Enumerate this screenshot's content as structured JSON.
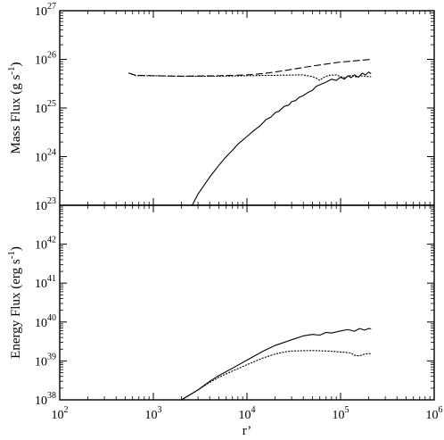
{
  "chart_data": [
    {
      "type": "line",
      "ylabel": "Mass Flux (g s",
      "ylabel_exponent": "-1",
      "ylabel_close": ")",
      "xscale": "log",
      "yscale": "log",
      "xlim": [
        100,
        1000000
      ],
      "ylim": [
        1e+23,
        1e+27
      ],
      "y_ticks": [
        {
          "base": "10",
          "exp": "23"
        },
        {
          "base": "10",
          "exp": "24"
        },
        {
          "base": "10",
          "exp": "25"
        },
        {
          "base": "10",
          "exp": "26"
        },
        {
          "base": "10",
          "exp": "27"
        }
      ],
      "grid": false,
      "series": [
        {
          "style": "solid",
          "points": [
            [
              2600,
              1e+23
            ],
            [
              3000,
              1.7e+23
            ],
            [
              4000,
              3.8e+23
            ],
            [
              5000,
              6.6e+23
            ],
            [
              6000,
              1e+24
            ],
            [
              7000,
              1.35e+24
            ],
            [
              8000,
              1.8e+24
            ],
            [
              10000,
              2.6e+24
            ],
            [
              12000,
              3.5e+24
            ],
            [
              14000,
              4.4e+24
            ],
            [
              16000,
              5.8e+24
            ],
            [
              18000,
              6.5e+24
            ],
            [
              20000,
              8e+24
            ],
            [
              22000,
              8.6e+24
            ],
            [
              25000,
              1.08e+25
            ],
            [
              28000,
              1.15e+25
            ],
            [
              30000,
              1.35e+25
            ],
            [
              33000,
              1.42e+25
            ],
            [
              36000,
              1.65e+25
            ],
            [
              40000,
              1.8e+25
            ],
            [
              45000,
              2.1e+25
            ],
            [
              50000,
              2.3e+25
            ],
            [
              55000,
              2.8e+25
            ],
            [
              60000,
              3e+25
            ],
            [
              70000,
              3.4e+25
            ],
            [
              80000,
              3.9e+25
            ],
            [
              90000,
              3.7e+25
            ],
            [
              100000,
              4.3e+25
            ],
            [
              110000,
              3.9e+25
            ],
            [
              120000,
              4.6e+25
            ],
            [
              130000,
              4.2e+25
            ],
            [
              140000,
              4.8e+25
            ],
            [
              155000,
              4.3e+25
            ],
            [
              170000,
              5.2e+25
            ],
            [
              185000,
              4.8e+25
            ],
            [
              200000,
              5.5e+25
            ],
            [
              210000,
              5.1e+25
            ]
          ]
        },
        {
          "style": "dotted",
          "points": [
            [
              550,
              5.2e+25
            ],
            [
              650,
              4.6e+25
            ],
            [
              1000,
              4.6e+25
            ],
            [
              2000,
              4.5e+25
            ],
            [
              5000,
              4.5e+25
            ],
            [
              10000,
              4.6e+25
            ],
            [
              20000,
              4.7e+25
            ],
            [
              40000,
              4.8e+25
            ],
            [
              50000,
              4.4e+25
            ],
            [
              55000,
              4.1e+25
            ],
            [
              60000,
              3.7e+25
            ],
            [
              65000,
              4.2e+25
            ],
            [
              75000,
              4.7e+25
            ],
            [
              90000,
              4.8e+25
            ],
            [
              100000,
              4.4e+25
            ],
            [
              110000,
              4.2e+25
            ],
            [
              130000,
              4.7e+25
            ],
            [
              150000,
              4.3e+25
            ],
            [
              170000,
              4.6e+25
            ],
            [
              200000,
              4.4e+25
            ],
            [
              210000,
              4.4e+25
            ]
          ]
        },
        {
          "style": "dashed",
          "points": [
            [
              550,
              5.2e+25
            ],
            [
              650,
              4.7e+25
            ],
            [
              1000,
              4.6e+25
            ],
            [
              2000,
              4.5e+25
            ],
            [
              5000,
              4.6e+25
            ],
            [
              10000,
              4.8e+25
            ],
            [
              15000,
              5.1e+25
            ],
            [
              20000,
              5.5e+25
            ],
            [
              30000,
              6.2e+25
            ],
            [
              40000,
              6.8e+25
            ],
            [
              50000,
              7.3e+25
            ],
            [
              70000,
              8e+25
            ],
            [
              100000,
              8.8e+25
            ],
            [
              140000,
              9.3e+25
            ],
            [
              210000,
              1e+26
            ]
          ]
        }
      ]
    },
    {
      "type": "line",
      "ylabel": "Energy Flux (erg s",
      "ylabel_exponent": "-1",
      "ylabel_close": ")",
      "xlabel": "r’",
      "xscale": "log",
      "yscale": "log",
      "xlim": [
        100,
        1000000
      ],
      "ylim": [
        1e+38,
        1e+43
      ],
      "x_ticks": [
        {
          "base": "10",
          "exp": "2"
        },
        {
          "base": "10",
          "exp": "3"
        },
        {
          "base": "10",
          "exp": "4"
        },
        {
          "base": "10",
          "exp": "5"
        },
        {
          "base": "10",
          "exp": "6"
        }
      ],
      "y_ticks": [
        {
          "base": "10",
          "exp": "38"
        },
        {
          "base": "10",
          "exp": "39"
        },
        {
          "base": "10",
          "exp": "40"
        },
        {
          "base": "10",
          "exp": "41"
        },
        {
          "base": "10",
          "exp": "42"
        }
      ],
      "grid": false,
      "series": [
        {
          "style": "solid",
          "points": [
            [
              2000,
              1e+38
            ],
            [
              3000,
              1.8e+38
            ],
            [
              4000,
              3e+38
            ],
            [
              5000,
              4.2e+38
            ],
            [
              7000,
              6.5e+38
            ],
            [
              10000,
              1.05e+39
            ],
            [
              15000,
              1.8e+39
            ],
            [
              20000,
              2.5e+39
            ],
            [
              30000,
              3.5e+39
            ],
            [
              40000,
              4.4e+39
            ],
            [
              50000,
              4.8e+39
            ],
            [
              60000,
              4.6e+39
            ],
            [
              70000,
              5.4e+39
            ],
            [
              80000,
              5.2e+39
            ],
            [
              100000,
              5.9e+39
            ],
            [
              120000,
              6.4e+39
            ],
            [
              140000,
              5.8e+39
            ],
            [
              160000,
              6.8e+39
            ],
            [
              180000,
              6.2e+39
            ],
            [
              200000,
              6.8e+39
            ],
            [
              210000,
              6.7e+39
            ]
          ]
        },
        {
          "style": "dotted",
          "points": [
            [
              2000,
              1e+38
            ],
            [
              3000,
              1.8e+38
            ],
            [
              4000,
              2.8e+38
            ],
            [
              5000,
              3.8e+38
            ],
            [
              7000,
              5.5e+38
            ],
            [
              10000,
              8e+38
            ],
            [
              15000,
              1.2e+39
            ],
            [
              20000,
              1.5e+39
            ],
            [
              25000,
              1.7e+39
            ],
            [
              30000,
              1.8e+39
            ],
            [
              50000,
              1.85e+39
            ],
            [
              70000,
              1.8e+39
            ],
            [
              100000,
              1.7e+39
            ],
            [
              130000,
              1.6e+39
            ],
            [
              140000,
              1.4e+39
            ],
            [
              160000,
              1.35e+39
            ],
            [
              180000,
              1.5e+39
            ],
            [
              210000,
              1.55e+39
            ]
          ]
        }
      ]
    }
  ]
}
